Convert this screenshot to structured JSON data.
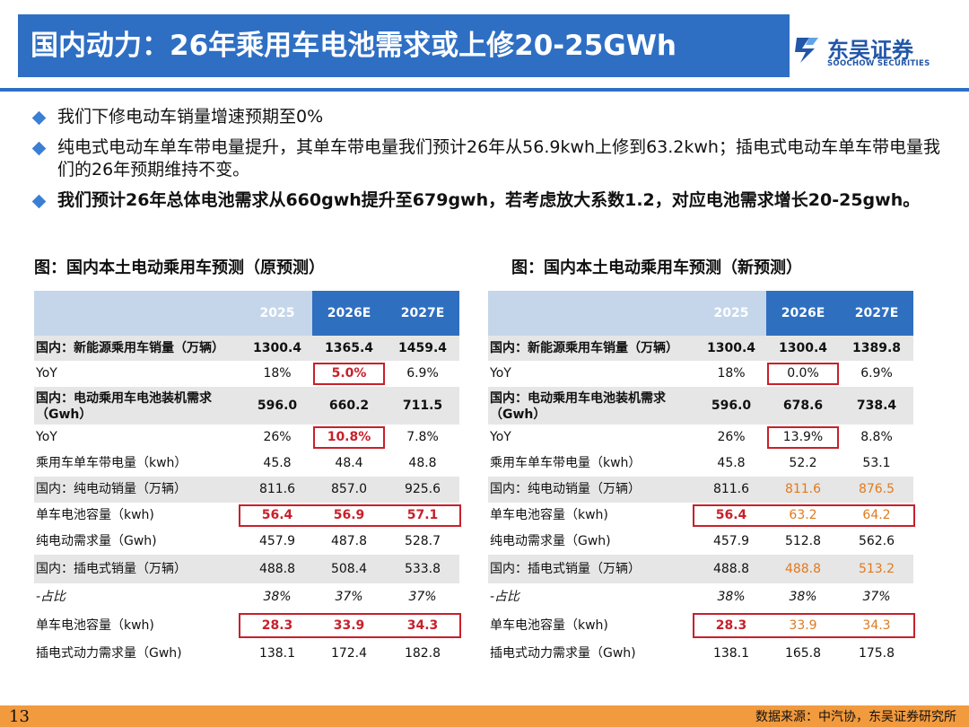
{
  "title": "国内动力：26年乘用车电池需求或上修20-25GWh",
  "logo": {
    "cn": "东吴证券",
    "en": "SOOCHOW SECURITIES"
  },
  "bullets": [
    "我们下修电动车销量增速预期至0%",
    "纯电式电动车单车带电量提升，其单车带电量我们预计26年从56.9kwh上修到63.2kwh；插电式电动车单车带电量我们的26年预期维持不变。",
    "我们预计26年总体电池需求从660gwh提升至679gwh，若考虑放大系数1.2，对应电池需求增长20-25gwh。"
  ],
  "table_old": {
    "caption": "图：国内本土电动乘用车预测（原预测）",
    "headers": [
      "2025",
      "2026E",
      "2027E"
    ],
    "rows": [
      {
        "label": "国内：新能源乘用车销量（万辆）",
        "values": [
          "1300.4",
          "1365.4",
          "1459.4"
        ]
      },
      {
        "label": "YoY",
        "values": [
          "18%",
          "5.0%",
          "6.9%"
        ]
      },
      {
        "label": "国内：电动乘用车电池装机需求（Gwh）",
        "values": [
          "596.0",
          "660.2",
          "711.5"
        ]
      },
      {
        "label": "YoY",
        "values": [
          "26%",
          "10.8%",
          "7.8%"
        ]
      },
      {
        "label": "乘用车单车带电量（kwh）",
        "values": [
          "45.8",
          "48.4",
          "48.8"
        ]
      },
      {
        "label": "国内：纯电动销量（万辆）",
        "values": [
          "811.6",
          "857.0",
          "925.6"
        ]
      },
      {
        "label": "单车电池容量（kwh)",
        "values": [
          "56.4",
          "56.9",
          "57.1"
        ]
      },
      {
        "label": "纯电动需求量（Gwh)",
        "values": [
          "457.9",
          "487.8",
          "528.7"
        ]
      },
      {
        "label": "国内：插电式销量（万辆）",
        "values": [
          "488.8",
          "508.4",
          "533.8"
        ]
      },
      {
        "label": "-占比",
        "values": [
          "38%",
          "37%",
          "37%"
        ]
      },
      {
        "label": "单车电池容量（kwh)",
        "values": [
          "28.3",
          "33.9",
          "34.3"
        ]
      },
      {
        "label": "插电式动力需求量（Gwh)",
        "values": [
          "138.1",
          "172.4",
          "182.8"
        ]
      }
    ]
  },
  "table_new": {
    "caption": "图：国内本土电动乘用车预测（新预测）",
    "headers": [
      "2025",
      "2026E",
      "2027E"
    ],
    "rows": [
      {
        "label": "国内：新能源乘用车销量（万辆）",
        "values": [
          "1300.4",
          "1300.4",
          "1389.8"
        ]
      },
      {
        "label": "YoY",
        "values": [
          "18%",
          "0.0%",
          "6.9%"
        ]
      },
      {
        "label": "国内：电动乘用车电池装机需求（Gwh）",
        "values": [
          "596.0",
          "678.6",
          "738.4"
        ]
      },
      {
        "label": "YoY",
        "values": [
          "26%",
          "13.9%",
          "8.8%"
        ]
      },
      {
        "label": "乘用车单车带电量（kwh）",
        "values": [
          "45.8",
          "52.2",
          "53.1"
        ]
      },
      {
        "label": "国内：纯电动销量（万辆）",
        "values": [
          "811.6",
          "811.6",
          "876.5"
        ]
      },
      {
        "label": "单车电池容量（kwh)",
        "values": [
          "56.4",
          "63.2",
          "64.2"
        ]
      },
      {
        "label": "纯电动需求量（Gwh)",
        "values": [
          "457.9",
          "512.8",
          "562.6"
        ]
      },
      {
        "label": "国内：插电式销量（万辆）",
        "values": [
          "488.8",
          "488.8",
          "513.2"
        ]
      },
      {
        "label": "-占比",
        "values": [
          "38%",
          "38%",
          "37%"
        ]
      },
      {
        "label": "单车电池容量（kwh)",
        "values": [
          "28.3",
          "33.9",
          "34.3"
        ]
      },
      {
        "label": "插电式动力需求量（Gwh)",
        "values": [
          "138.1",
          "165.8",
          "175.8"
        ]
      }
    ]
  },
  "colors": {
    "brand_blue": "#2e6fc4",
    "header_dark": "#2f6fc0",
    "header_light": "#c5d6ea",
    "highlight_red": "#c8202a",
    "changed_orange": "#e07a1f",
    "footer_orange": "#f29a3e"
  },
  "footer": {
    "page": "13",
    "source": "数据来源：中汽协，东吴证券研究所"
  }
}
